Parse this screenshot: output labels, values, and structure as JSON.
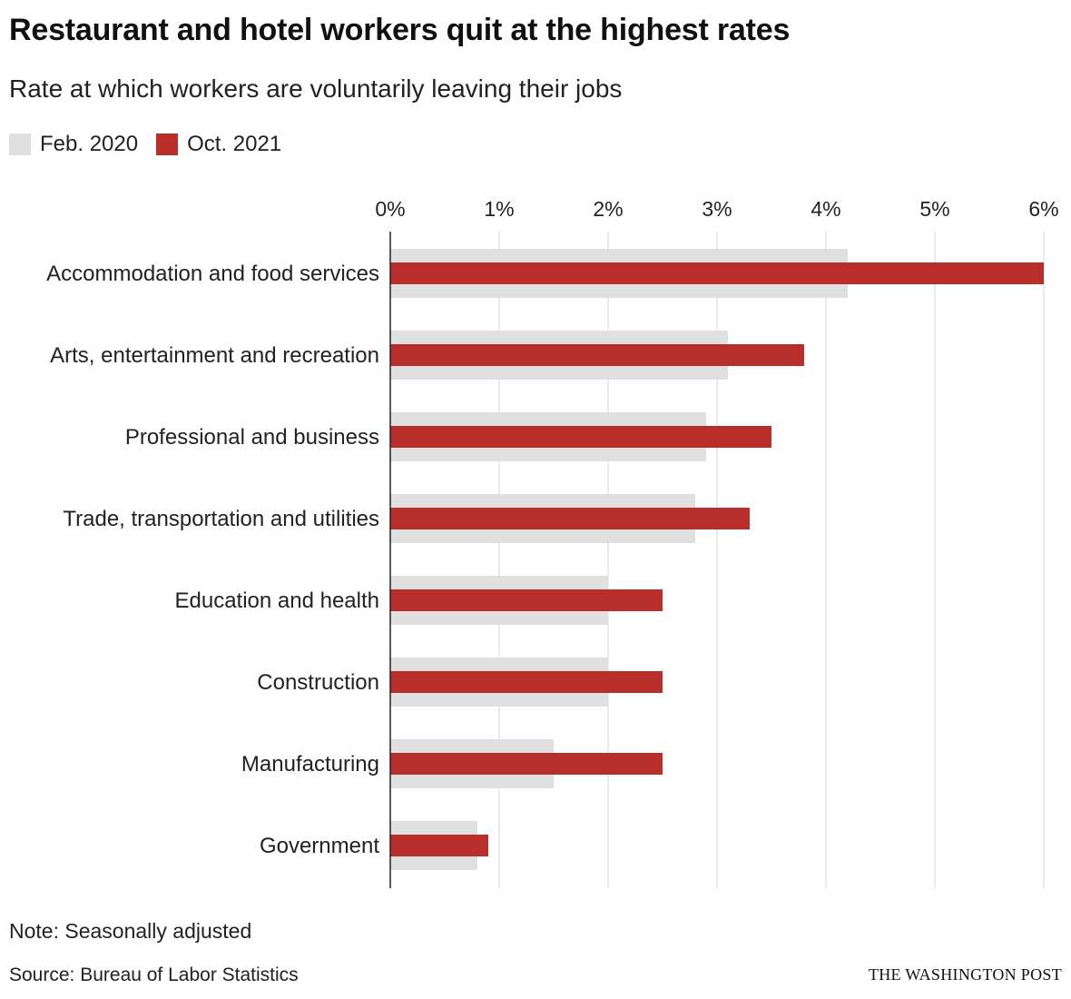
{
  "chart_data": {
    "type": "bar",
    "orientation": "horizontal",
    "title": "Restaurant and hotel workers quit at the highest rates",
    "subtitle": "Rate at which workers are voluntarily leaving their jobs",
    "categories": [
      "Accommodation and food services",
      "Arts, entertainment and recreation",
      "Professional and business",
      "Trade, transportation and utilities",
      "Education and health",
      "Construction",
      "Manufacturing",
      "Government"
    ],
    "series": [
      {
        "name": "Feb. 2020",
        "color": "#e0e0e0",
        "values": [
          4.2,
          3.1,
          2.9,
          2.8,
          2.0,
          2.0,
          1.5,
          0.8
        ]
      },
      {
        "name": "Oct. 2021",
        "color": "#b72e2b",
        "values": [
          6.0,
          3.8,
          3.5,
          3.3,
          2.5,
          2.5,
          2.5,
          0.9
        ]
      }
    ],
    "xlim": [
      0,
      6
    ],
    "x_ticks": [
      "0%",
      "1%",
      "2%",
      "3%",
      "4%",
      "5%",
      "6%"
    ],
    "grid": true,
    "legend_position": "top-left",
    "note": "Note: Seasonally adjusted",
    "source": "Source: Bureau of Labor Statistics",
    "credit": "THE WASHINGTON POST"
  }
}
